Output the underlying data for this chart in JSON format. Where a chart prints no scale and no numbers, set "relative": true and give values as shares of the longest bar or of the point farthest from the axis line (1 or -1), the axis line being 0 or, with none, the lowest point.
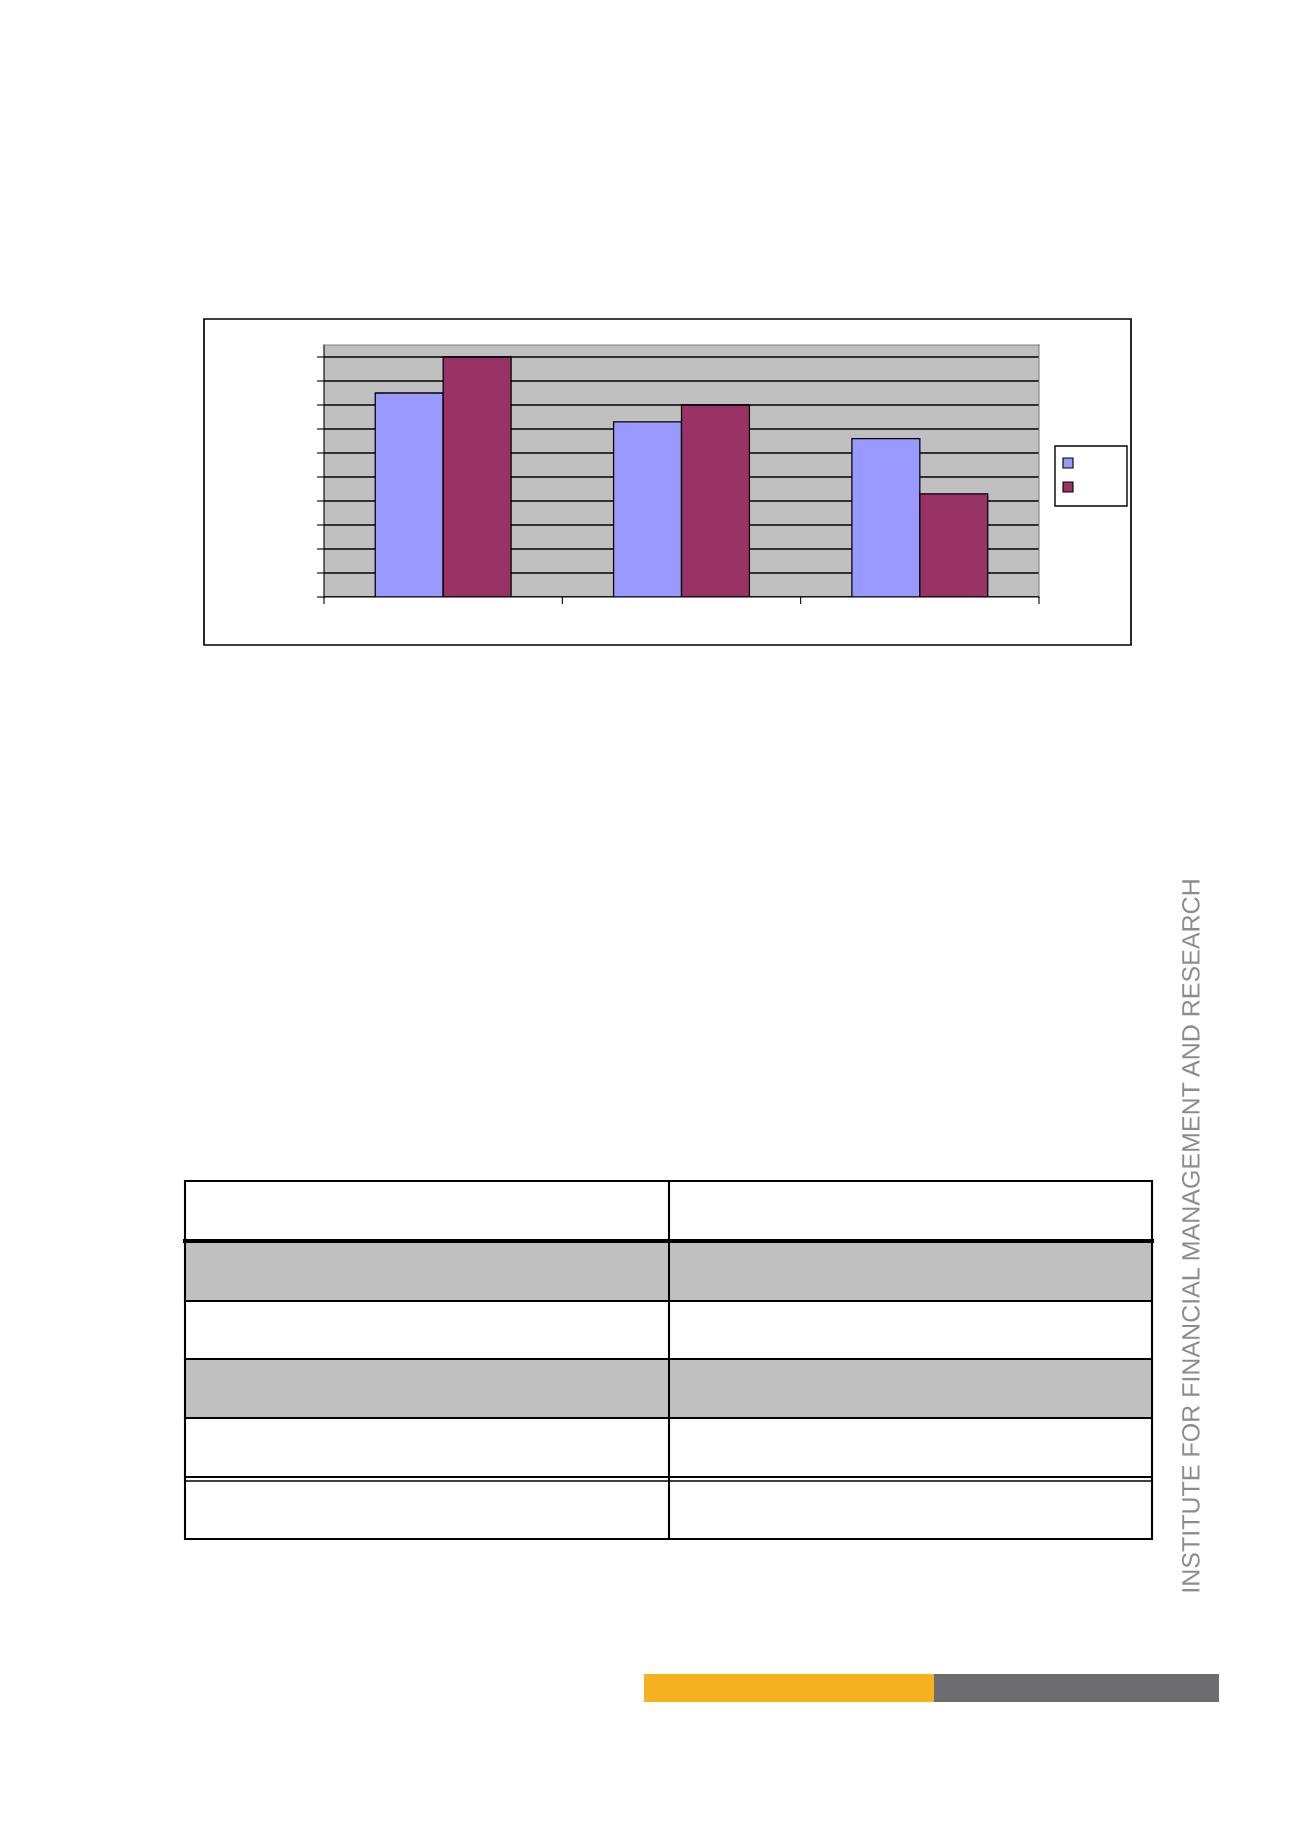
{
  "chart_data": {
    "type": "bar",
    "categories": [
      null,
      null,
      null
    ],
    "relative": true,
    "series": [
      {
        "color": "#9999ff",
        "values": [
          0.85,
          0.73,
          0.66
        ]
      },
      {
        "color": "#993366",
        "values": [
          1,
          0.8,
          0.43
        ]
      }
    ],
    "grid": "y",
    "annotations": [
      "INSTITUTE FOR FINANCIAL MANAGEMENT AND RESEARCH"
    ]
  }
}
